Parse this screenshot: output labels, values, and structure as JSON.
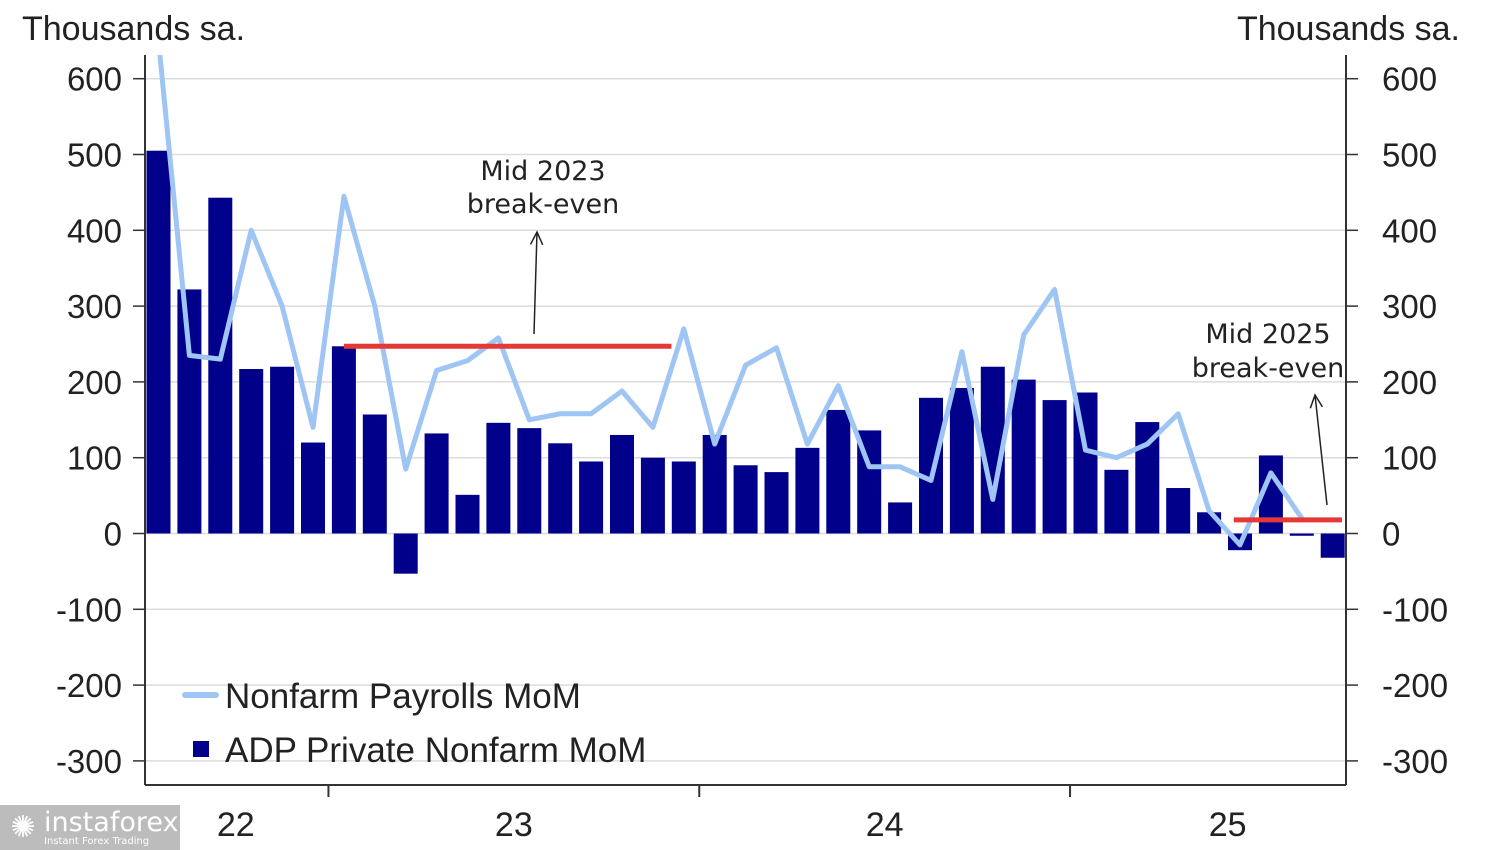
{
  "chart_data": {
    "type": "bar",
    "y_axis": {
      "unit_left": "Thousands sa.",
      "unit_right": "Thousands sa.",
      "ylim": [
        -300,
        600
      ],
      "ticks": [
        600,
        500,
        400,
        300,
        200,
        100,
        0,
        -100,
        -200,
        -300
      ]
    },
    "x_axis": {
      "year_labels": [
        "22",
        "23",
        "24",
        "25"
      ],
      "year_start_index": [
        0,
        6,
        18,
        30
      ]
    },
    "series": [
      {
        "name": "ADP Private Nonfarm MoM",
        "type": "bar",
        "color": "#00008b",
        "values": [
          505,
          322,
          443,
          217,
          220,
          120,
          247,
          157,
          -53,
          132,
          51,
          146,
          139,
          119,
          95,
          130,
          100,
          95,
          130,
          90,
          81,
          113,
          163,
          136,
          41,
          179,
          192,
          220,
          203,
          176,
          186,
          84,
          147,
          60,
          28,
          -22,
          103,
          -3,
          -32
        ]
      },
      {
        "name": "Nonfarm Payrolls MoM",
        "type": "line",
        "color": "#9fc5f4",
        "values": [
          650,
          235,
          230,
          400,
          300,
          140,
          445,
          300,
          85,
          215,
          228,
          258,
          150,
          158,
          158,
          188,
          140,
          270,
          118,
          222,
          245,
          118,
          195,
          88,
          88,
          70,
          240,
          45,
          262,
          322,
          110,
          100,
          118,
          158,
          30,
          -15,
          80,
          20
        ]
      }
    ],
    "reference_lines": [
      {
        "label": "Mid 2023 break-even",
        "value": 247,
        "from_index": 6,
        "to_index": 16.6,
        "color": "#e53935"
      },
      {
        "label": "Mid 2025 break-even",
        "value": 18,
        "from_index": 34.8,
        "to_index": 38.3,
        "color": "#e53935"
      }
    ],
    "annotations": [
      {
        "lines": [
          "Mid 2023",
          "break-even"
        ],
        "anchor_index": 12.7,
        "anchor_value": 247
      },
      {
        "lines": [
          "Mid 2025",
          "break-even"
        ],
        "anchor_index": 38,
        "anchor_value": 18
      }
    ],
    "legend": {
      "placement": "bottom-left"
    }
  },
  "watermark": {
    "brand": "instaforex",
    "tagline": "Instant Forex Trading"
  }
}
